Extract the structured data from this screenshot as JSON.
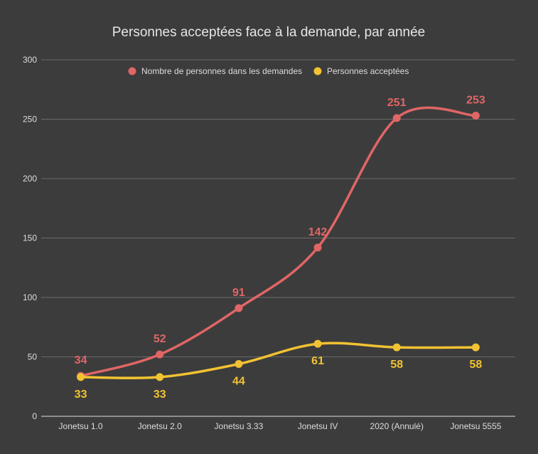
{
  "chart_data": {
    "type": "line",
    "title": "Personnes acceptées face à la demande, par année",
    "categories": [
      "Jonetsu 1.0",
      "Jonetsu 2.0",
      "Jonetsu 3.33",
      "Jonetsu IV",
      "2020 (Annulé)",
      "Jonetsu 5555"
    ],
    "series": [
      {
        "name": "Nombre de personnes dans les demandes",
        "values": [
          34,
          52,
          91,
          142,
          251,
          253
        ],
        "color": "#e06666",
        "label_position": "above"
      },
      {
        "name": "Personnes acceptées",
        "values": [
          33,
          33,
          44,
          61,
          58,
          58
        ],
        "color": "#f1c232",
        "label_position": "below"
      }
    ],
    "yticks": [
      "0",
      "50",
      "100",
      "150",
      "200",
      "250",
      "300"
    ],
    "ylim": [
      0,
      300
    ],
    "grid": true,
    "legend_position": "top",
    "smooth": true
  }
}
